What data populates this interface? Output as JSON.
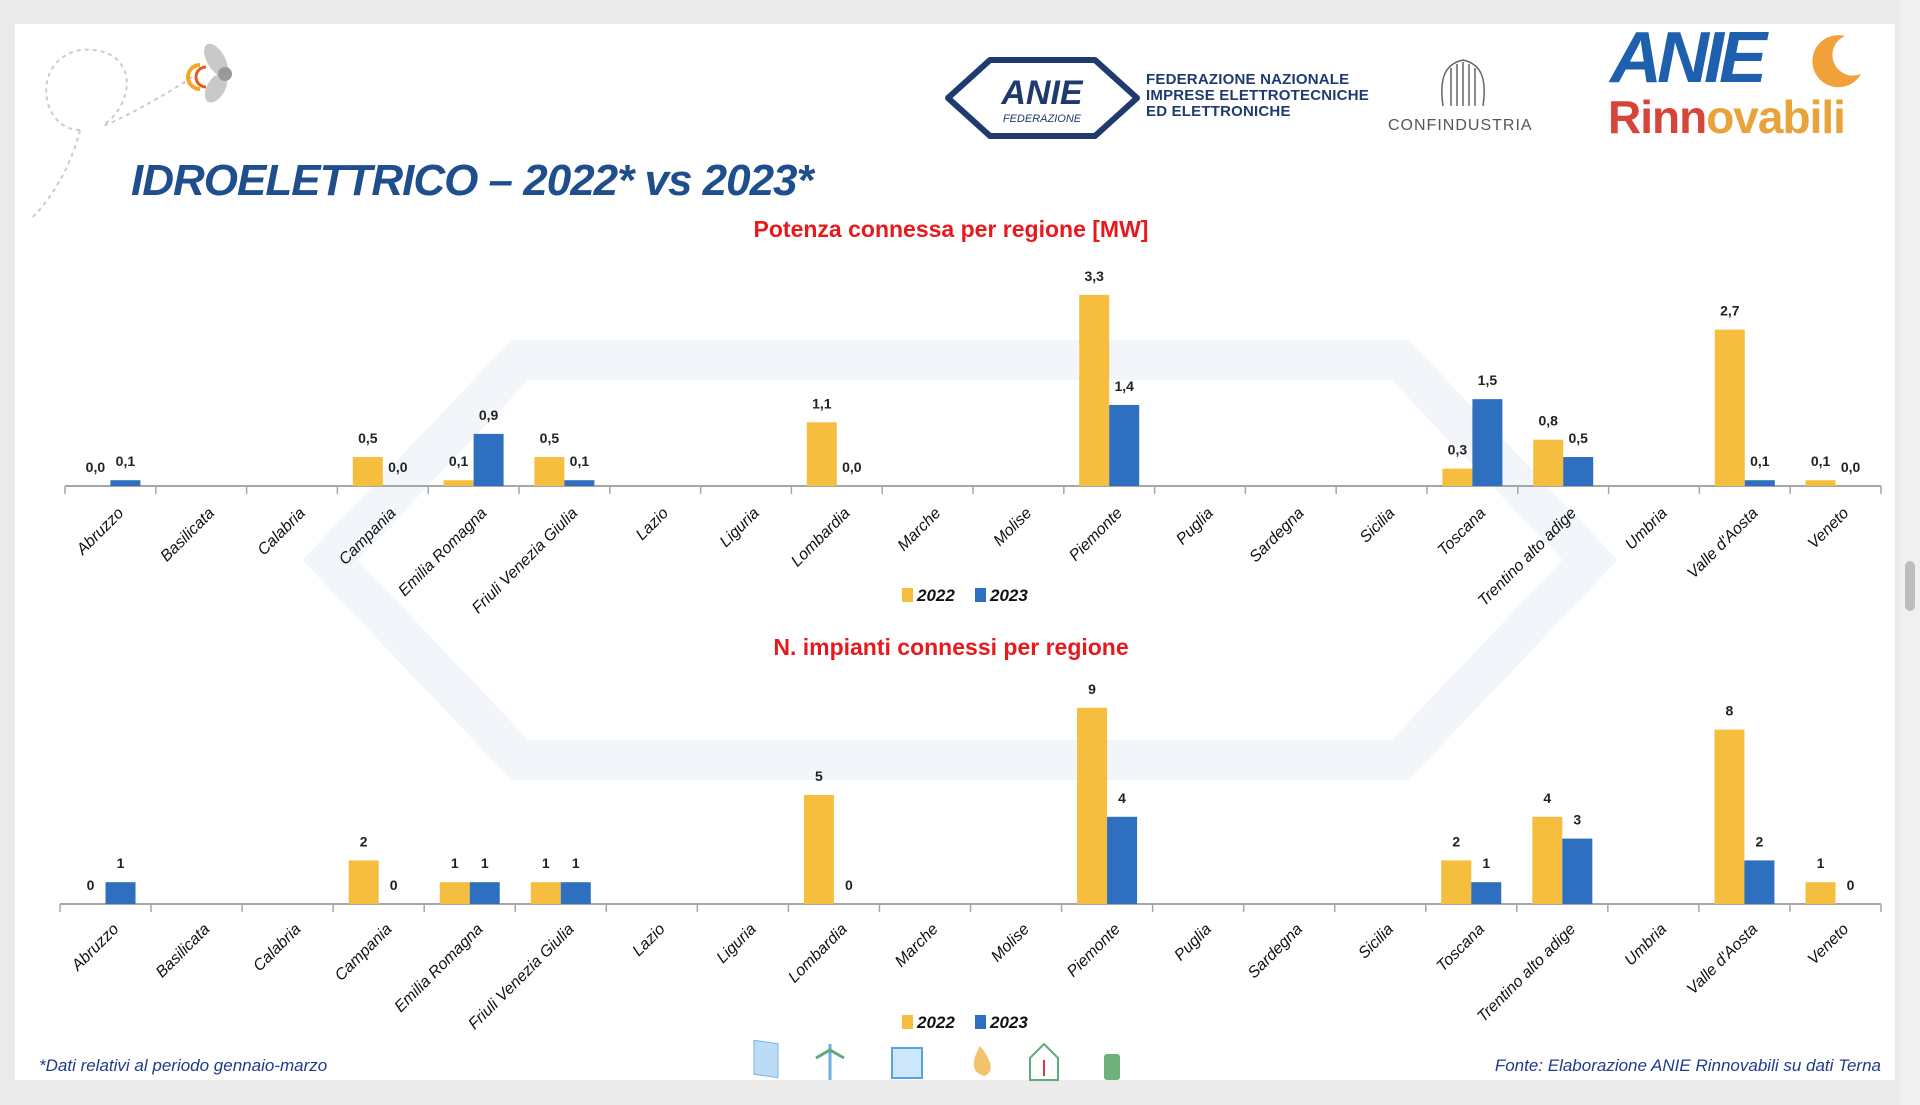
{
  "title": "IDROELETTRICO – 2022* vs 2023*",
  "logos": {
    "anie_federazione": "ANIE",
    "anie_federazione_sub": "FEDERAZIONE",
    "federazione_text": [
      "FEDERAZIONE NAZIONALE",
      "IMPRESE ELETTROTECNICHE",
      "ED ELETTRONICHE"
    ],
    "confindustria": "CONFINDUSTRIA",
    "anie_rinnovabili_top": "ANIE",
    "anie_rinnovabili_bottom": "Rinnovabili"
  },
  "colors": {
    "s2022": "#f5be3f",
    "s2023": "#2e6fbf",
    "title": "#1f4e8c",
    "chart_title": "#e8191c"
  },
  "chart_data": [
    {
      "type": "bar",
      "title": "Potenza connessa per regione [MW]",
      "categories": [
        "Abruzzo",
        "Basilicata",
        "Calabria",
        "Campania",
        "Emilia Romagna",
        "Friuli Venezia Giulia",
        "Lazio",
        "Liguria",
        "Lombardia",
        "Marche",
        "Molise",
        "Piemonte",
        "Puglia",
        "Sardegna",
        "Sicilia",
        "Toscana",
        "Trentino alto adige",
        "Umbria",
        "Valle d'Aosta",
        "Veneto"
      ],
      "series": [
        {
          "name": "2022",
          "values": [
            0.0,
            null,
            null,
            0.5,
            0.1,
            0.5,
            null,
            null,
            1.1,
            null,
            null,
            3.3,
            null,
            null,
            null,
            0.3,
            0.8,
            null,
            2.7,
            0.1
          ],
          "labels": [
            "0,0",
            "",
            "",
            "0,5",
            "0,1",
            "0,5",
            "",
            "",
            "1,1",
            "",
            "",
            "3,3",
            "",
            "",
            "",
            "0,3",
            "0,8",
            "",
            "2,7",
            "0,1"
          ]
        },
        {
          "name": "2023",
          "values": [
            0.1,
            null,
            null,
            0.0,
            0.9,
            0.1,
            null,
            null,
            0.0,
            null,
            null,
            1.4,
            null,
            null,
            null,
            1.5,
            0.5,
            null,
            0.1,
            0.0
          ],
          "labels": [
            "0,1",
            "",
            "",
            "0,0",
            "0,9",
            "0,1",
            "",
            "",
            "0,0",
            "",
            "",
            "1,4",
            "",
            "",
            "",
            "1,5",
            "0,5",
            "",
            "0,1",
            "0,0"
          ]
        }
      ],
      "legend": "bottom",
      "grid": false
    },
    {
      "type": "bar",
      "title": "N. impianti connessi per regione",
      "categories": [
        "Abruzzo",
        "Basilicata",
        "Calabria",
        "Campania",
        "Emilia Romagna",
        "Friuli Venezia Giulia",
        "Lazio",
        "Liguria",
        "Lombardia",
        "Marche",
        "Molise",
        "Piemonte",
        "Puglia",
        "Sardegna",
        "Sicilia",
        "Toscana",
        "Trentino alto adige",
        "Umbria",
        "Valle d'Aosta",
        "Veneto"
      ],
      "series": [
        {
          "name": "2022",
          "values": [
            0,
            null,
            null,
            2,
            1,
            1,
            null,
            null,
            5,
            null,
            null,
            9,
            null,
            null,
            null,
            2,
            4,
            null,
            8,
            1
          ],
          "labels": [
            "0",
            "",
            "",
            "2",
            "1",
            "1",
            "",
            "",
            "5",
            "",
            "",
            "9",
            "",
            "",
            "",
            "2",
            "4",
            "",
            "8",
            "1"
          ]
        },
        {
          "name": "2023",
          "values": [
            1,
            null,
            null,
            0,
            1,
            1,
            null,
            null,
            0,
            null,
            null,
            4,
            null,
            null,
            null,
            1,
            3,
            null,
            2,
            0
          ],
          "labels": [
            "1",
            "",
            "",
            "0",
            "1",
            "1",
            "",
            "",
            "0",
            "",
            "",
            "4",
            "",
            "",
            "",
            "1",
            "3",
            "",
            "2",
            "0"
          ]
        }
      ],
      "legend": "bottom",
      "grid": false
    }
  ],
  "footer": {
    "note": "*Dati relativi al periodo gennaio-marzo",
    "source": "Fonte: Elaborazione ANIE Rinnovabili su dati Terna",
    "icons": [
      "solar-panel-icon",
      "wind-turbine-icon",
      "solar-thermal-icon",
      "biomass-flame-icon",
      "heat-pump-house-icon",
      "recycle-battery-icon"
    ]
  }
}
